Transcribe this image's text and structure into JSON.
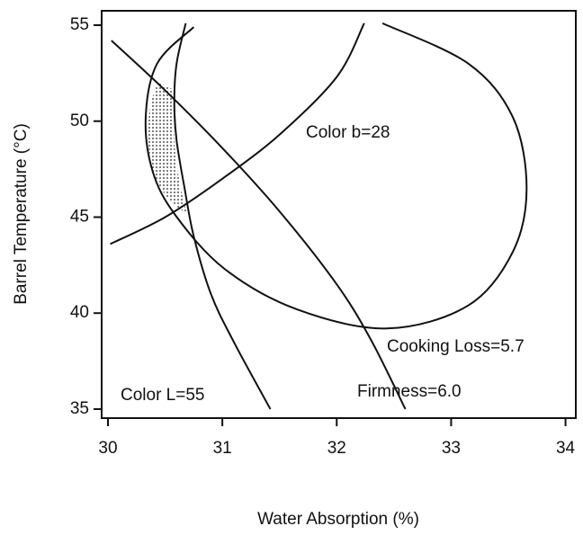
{
  "chart_data": {
    "type": "line",
    "xlabel": "Water Absorption (%)",
    "ylabel": "Barrel Temperature (°C)",
    "xlim": [
      29.945,
      34.09
    ],
    "ylim": [
      34.53,
      55.75
    ],
    "xticks": [
      30,
      31,
      32,
      33,
      34
    ],
    "yticks": [
      35,
      40,
      45,
      50,
      55
    ],
    "color": "#111111",
    "annotations": [
      "Color b=28",
      "Cooking Loss=5.7",
      "Color L=55",
      "Firmness=6.0"
    ],
    "series": [
      {
        "x": [
          32.24,
          32.0,
          31.5,
          31.0,
          30.5,
          30.02
        ],
        "values": [
          55.1,
          52.3,
          49.3,
          47.0,
          45.0,
          43.6
        ]
      },
      {
        "x": [
          30.75,
          30.43,
          30.33,
          30.39,
          30.59,
          31.02,
          31.65,
          32.44,
          33.15,
          33.54,
          33.66,
          33.54,
          33.15,
          32.4
        ],
        "values": [
          54.9,
          53.0,
          50.2,
          47.4,
          45.1,
          42.3,
          40.2,
          39.2,
          40.4,
          43.2,
          46.5,
          50.2,
          53.0,
          55.1
        ]
      },
      {
        "x": [
          30.68,
          30.6,
          30.58,
          30.6,
          30.67,
          30.75,
          30.9,
          31.1,
          31.42
        ],
        "values": [
          55.1,
          53.0,
          51.0,
          49.0,
          46.5,
          44.0,
          41.0,
          38.5,
          35.0
        ]
      },
      {
        "x": [
          30.03,
          30.5,
          31.0,
          31.5,
          32.0,
          32.3,
          32.6
        ],
        "values": [
          54.2,
          51.6,
          48.6,
          45.3,
          41.5,
          38.6,
          35.0
        ]
      }
    ]
  }
}
